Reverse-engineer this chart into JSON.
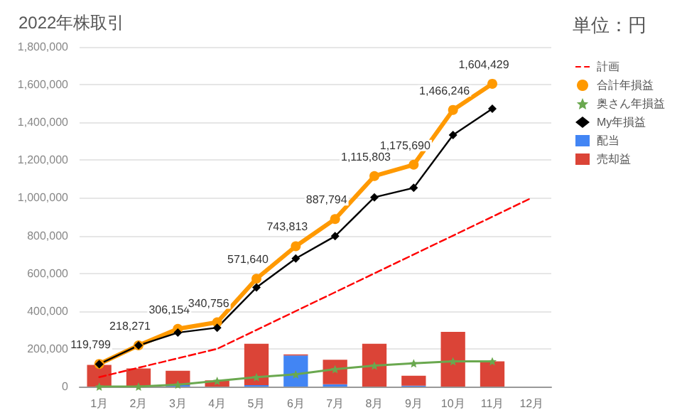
{
  "chart_data": {
    "type": "bar",
    "title": "2022年株取引",
    "legend_title": "単位：円",
    "categories": [
      "1月",
      "2月",
      "3月",
      "4月",
      "5月",
      "6月",
      "7月",
      "8月",
      "9月",
      "10月",
      "11月",
      "12月"
    ],
    "stacked": true,
    "grid": "y",
    "legend": "right",
    "ylim": [
      0,
      1800000
    ],
    "yticks": [
      {
        "value": 0,
        "label": "0"
      },
      {
        "value": 200000,
        "label": "200,000"
      },
      {
        "value": 400000,
        "label": "400,000"
      },
      {
        "value": 600000,
        "label": "600,000"
      },
      {
        "value": 800000,
        "label": "800,000"
      },
      {
        "value": 1000000,
        "label": "1,000,000"
      },
      {
        "value": 1200000,
        "label": "1,200,000"
      },
      {
        "value": 1400000,
        "label": "1,400,000"
      },
      {
        "value": 1600000,
        "label": "1,600,000"
      },
      {
        "value": 1800000,
        "label": "1,800,000"
      }
    ],
    "series": [
      {
        "name": "計画",
        "type": "line",
        "color": "#ff0000",
        "line_style": "dashed",
        "marker": "none",
        "values": [
          50000,
          100000,
          150000,
          200000,
          300000,
          400000,
          500000,
          600000,
          700000,
          800000,
          900000,
          1000000
        ]
      },
      {
        "name": "合計年損益",
        "type": "line",
        "color": "#ff9900",
        "marker": "circle",
        "values": [
          119799,
          218271,
          306154,
          340756,
          571640,
          743813,
          887794,
          1115803,
          1175690,
          1466246,
          1604429,
          null
        ],
        "value_labels": [
          "119,799",
          "218,271",
          "306,154",
          "340,756",
          "571,640",
          "743,813",
          "887,794",
          "1,115,803",
          "1,175,690",
          "1,466,246",
          "1,604,429",
          null
        ]
      },
      {
        "name": "奥さん年損益",
        "type": "line",
        "color": "#6aa84f",
        "marker": "star",
        "values": [
          0,
          0,
          10000,
          30000,
          50000,
          65000,
          92000,
          111000,
          123000,
          134000,
          134000,
          null
        ]
      },
      {
        "name": "My年損益",
        "type": "line",
        "color": "#000000",
        "marker": "diamond",
        "values": [
          119000,
          218000,
          286000,
          312000,
          525000,
          679000,
          797000,
          1003000,
          1053000,
          1333000,
          1472000,
          null
        ]
      },
      {
        "name": "配当",
        "color": "#4285f4",
        "values": [
          null,
          null,
          8000,
          null,
          8000,
          165000,
          12000,
          null,
          5000,
          null,
          null,
          null
        ]
      },
      {
        "name": "売却益",
        "color": "#db4437",
        "values": [
          115000,
          96000,
          76000,
          33000,
          219000,
          5000,
          130000,
          227000,
          52000,
          290000,
          134000,
          null
        ]
      }
    ]
  }
}
